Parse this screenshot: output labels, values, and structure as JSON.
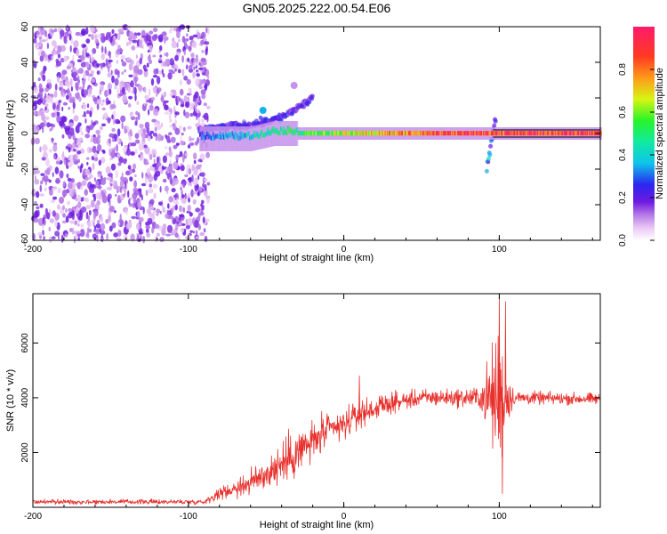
{
  "title": "GN05.2025.222.00.54.E06",
  "chart_data": [
    {
      "type": "heatmap",
      "xlabel": "Height of straight line (km)",
      "ylabel": "Frequency (Hz)",
      "xlim": [
        -200,
        165
      ],
      "ylim": [
        -60,
        60
      ],
      "x_ticks": [
        -200,
        -100,
        0,
        100
      ],
      "x_tick_labels": [
        "-200",
        "-100",
        "0",
        "100"
      ],
      "y_ticks": [
        -60,
        -40,
        -20,
        0,
        20,
        40,
        60
      ],
      "y_tick_labels": [
        "-60",
        "-40",
        "-20",
        "0",
        "20",
        "40",
        "60"
      ],
      "colorbar": {
        "label": "Normalized spectral amplitude",
        "range": [
          0,
          1
        ],
        "ticks": [
          0,
          0.2,
          0.4,
          0.6,
          0.8
        ],
        "tick_labels": [
          "0.0",
          "0.2",
          "0.4",
          "0.6",
          "0.8"
        ],
        "colormap": "rainbow"
      },
      "features": [
        {
          "kind": "noise",
          "x_range": [
            -200,
            -87
          ],
          "y_range": [
            -60,
            60
          ],
          "amplitude": 0.15
        },
        {
          "kind": "band",
          "points": [
            [
              -93,
              -3
            ],
            [
              -80,
              -3
            ],
            [
              -60,
              -3
            ],
            [
              -45,
              0
            ],
            [
              -30,
              0
            ],
            [
              -15,
              0
            ],
            [
              0,
              0
            ],
            [
              20,
              0
            ],
            [
              60,
              0
            ],
            [
              80,
              0
            ],
            [
              95,
              0
            ],
            [
              165,
              0
            ]
          ],
          "amplitude_start": 0.3,
          "amplitude_end": 0.95
        },
        {
          "kind": "streak",
          "points": [
            [
              -93,
              2
            ],
            [
              -60,
              5
            ],
            [
              -40,
              9
            ],
            [
              -30,
              14
            ],
            [
              -20,
              20
            ]
          ],
          "amplitude": 0.2
        },
        {
          "kind": "streak",
          "points": [
            [
              92,
              -20
            ],
            [
              94,
              -10
            ],
            [
              96,
              0
            ],
            [
              98,
              12
            ]
          ],
          "amplitude": 0.3
        },
        {
          "kind": "spot",
          "x": -52,
          "y": 13,
          "amplitude": 0.35
        },
        {
          "kind": "spot",
          "x": -32,
          "y": 27,
          "amplitude": 0.1
        }
      ]
    },
    {
      "type": "line",
      "xlabel": "Height of straight line (km)",
      "ylabel": "SNR (10 * v/v)",
      "xlim": [
        -200,
        165
      ],
      "ylim": [
        0,
        7800
      ],
      "x_ticks": [
        -200,
        -100,
        0,
        100
      ],
      "x_tick_labels": [
        "-200",
        "-100",
        "0",
        "100"
      ],
      "y_ticks": [
        2000,
        4000,
        6000
      ],
      "y_tick_labels": [
        "2000",
        "4000",
        "6000"
      ],
      "series": [
        {
          "color": "#e8302c",
          "envelope": [
            {
              "x": -200,
              "mean": 200,
              "spread": 130
            },
            {
              "x": -90,
              "mean": 200,
              "spread": 130
            },
            {
              "x": -80,
              "mean": 500,
              "spread": 300
            },
            {
              "x": -60,
              "mean": 900,
              "spread": 700
            },
            {
              "x": -45,
              "mean": 1400,
              "spread": 1000
            },
            {
              "x": -30,
              "mean": 2000,
              "spread": 1300
            },
            {
              "x": -20,
              "mean": 2400,
              "spread": 1100
            },
            {
              "x": -10,
              "mean": 2800,
              "spread": 900
            },
            {
              "x": 0,
              "mean": 3000,
              "spread": 800
            },
            {
              "x": 10,
              "mean": 3400,
              "spread": 700
            },
            {
              "x": 30,
              "mean": 3800,
              "spread": 500
            },
            {
              "x": 50,
              "mean": 4000,
              "spread": 450
            },
            {
              "x": 70,
              "mean": 4000,
              "spread": 450
            },
            {
              "x": 88,
              "mean": 4000,
              "spread": 600
            },
            {
              "x": 95,
              "mean": 4000,
              "spread": 2600
            },
            {
              "x": 100,
              "mean": 4000,
              "spread": 3900
            },
            {
              "x": 106,
              "mean": 4000,
              "spread": 1200
            },
            {
              "x": 110,
              "mean": 4000,
              "spread": 350
            },
            {
              "x": 165,
              "mean": 3950,
              "spread": 300
            }
          ],
          "peaks": [
            {
              "x": 10,
              "y": 4800
            },
            {
              "x": 100,
              "y": 7800
            },
            {
              "x": 102,
              "y": 500
            },
            {
              "x": 104,
              "y": 7500
            }
          ]
        }
      ]
    }
  ]
}
